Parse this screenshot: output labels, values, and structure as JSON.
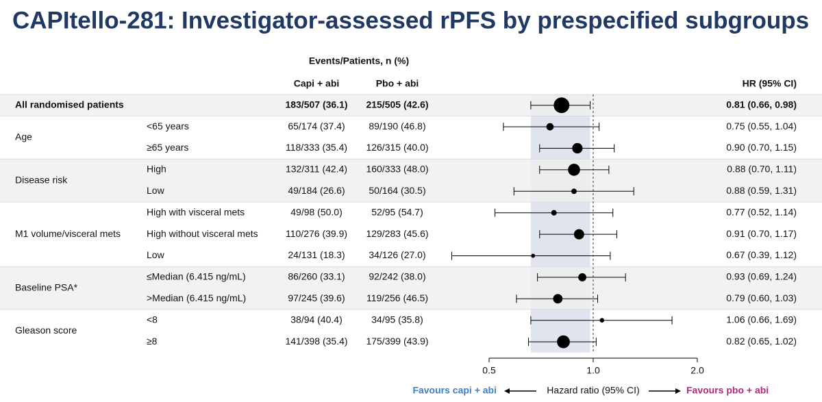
{
  "chart_data": {
    "type": "forest",
    "title": "CAPItello-281: Investigator-assessed rPFS by prespecified subgroups",
    "columns": {
      "events_header": "Events/Patients, n (%)",
      "capi": "Capi + abi",
      "pbo": "Pbo + abi",
      "hr": "HR (95% CI)"
    },
    "groups": [
      {
        "label": "All randomised patients",
        "subgroups": [
          null
        ]
      },
      {
        "label": "Age",
        "subgroups": [
          "<65 years",
          "≥65 years"
        ]
      },
      {
        "label": "Disease risk",
        "subgroups": [
          "High",
          "Low"
        ]
      },
      {
        "label": "M1 volume/visceral mets",
        "subgroups": [
          "High with visceral mets",
          "High without visceral mets",
          "Low"
        ]
      },
      {
        "label": "Baseline PSA*",
        "subgroups": [
          "≤Median (6.415 ng/mL)",
          ">Median (6.415 ng/mL)"
        ]
      },
      {
        "label": "Gleason score",
        "subgroups": [
          "<8",
          "≥8"
        ]
      }
    ],
    "capi": [
      "183/507 (36.1)",
      "65/174 (37.4)",
      "118/333 (35.4)",
      "132/311 (42.4)",
      "49/184 (26.6)",
      "49/98 (50.0)",
      "110/276 (39.9)",
      "24/131 (18.3)",
      "86/260 (33.1)",
      "97/245 (39.6)",
      "38/94 (40.4)",
      "141/398 (35.4)"
    ],
    "pbo": [
      "215/505 (42.6)",
      "89/190 (46.8)",
      "126/315 (40.0)",
      "160/333 (48.0)",
      "50/164 (30.5)",
      "52/95 (54.7)",
      "129/283 (45.6)",
      "34/126 (27.0)",
      "92/242 (38.0)",
      "119/256 (46.5)",
      "34/95 (35.8)",
      "175/399 (43.9)"
    ],
    "values": [
      0.81,
      0.75,
      0.9,
      0.88,
      0.88,
      0.77,
      0.91,
      0.67,
      0.93,
      0.79,
      1.06,
      0.82
    ],
    "lower": [
      0.66,
      0.55,
      0.7,
      0.7,
      0.59,
      0.52,
      0.7,
      0.39,
      0.69,
      0.6,
      0.66,
      0.65
    ],
    "upper": [
      0.98,
      1.04,
      1.15,
      1.11,
      1.31,
      1.14,
      1.17,
      1.12,
      1.24,
      1.03,
      1.69,
      1.02
    ],
    "value_labels": [
      "0.81 (0.66, 0.98)",
      "0.75 (0.55, 1.04)",
      "0.90 (0.70, 1.15)",
      "0.88 (0.70, 1.11)",
      "0.88 (0.59, 1.31)",
      "0.77 (0.52, 1.14)",
      "0.91 (0.70, 1.17)",
      "0.67 (0.39, 1.12)",
      "0.93 (0.69, 1.24)",
      "0.79 (0.60, 1.03)",
      "1.06 (0.66, 1.69)",
      "0.82 (0.65, 1.02)"
    ],
    "xlim": [
      0.5,
      2
    ],
    "xticks": [
      0.5,
      {
        "value": 1,
        "label": "1.0"
      },
      {
        "value": 2,
        "label": "2.0"
      }
    ],
    "log_x": true,
    "reference_line": 1,
    "xlabel": "Hazard ratio (95% CI)",
    "favours_left": "Favours capi + abi",
    "favours_right": "Favours pbo + abi",
    "left_color": "#3b7fc4",
    "right_color": "#b5267f",
    "shade_color": "#dfe4ef",
    "marker_color": "#000000"
  }
}
